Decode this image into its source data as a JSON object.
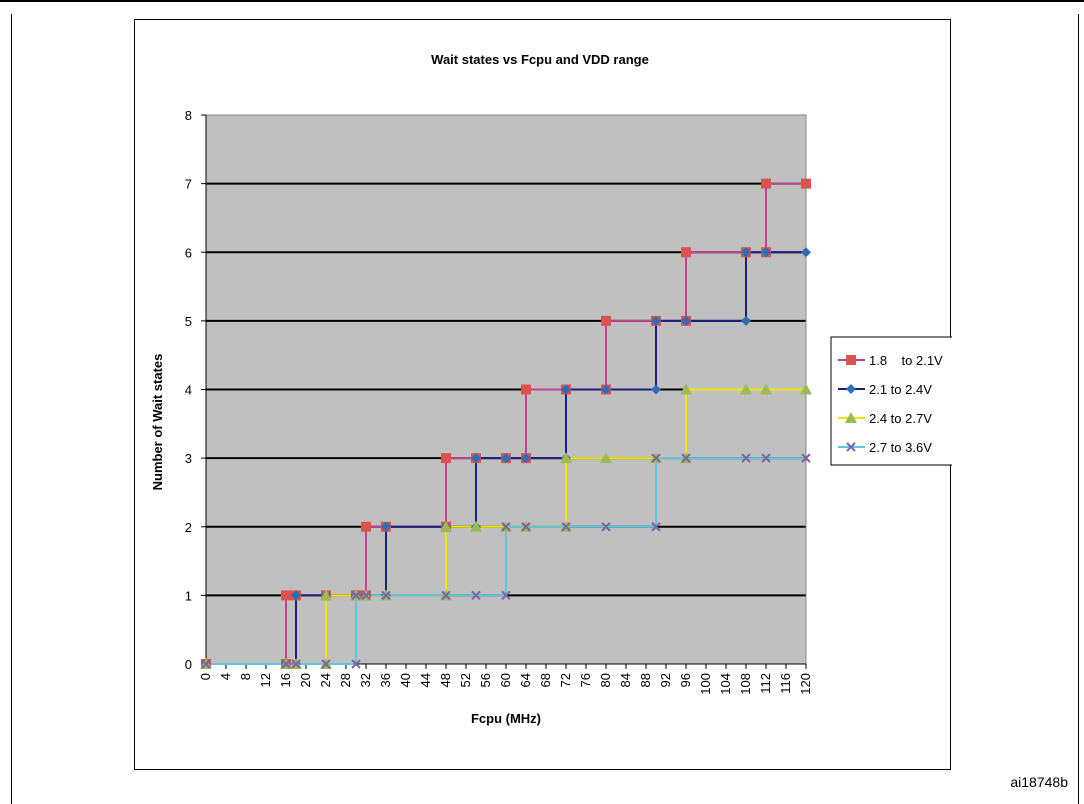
{
  "figure_id": "ai18748b",
  "chart_data": {
    "type": "line",
    "title": "Wait states vs Fcpu and VDD range",
    "xlabel": "Fcpu (MHz)",
    "ylabel": "Number of Wait states",
    "xlim": [
      0,
      120
    ],
    "ylim": [
      0,
      8
    ],
    "x_ticks": [
      0,
      4,
      8,
      12,
      16,
      20,
      24,
      28,
      32,
      36,
      40,
      44,
      48,
      52,
      56,
      60,
      64,
      68,
      72,
      76,
      80,
      84,
      88,
      92,
      96,
      100,
      104,
      108,
      112,
      116,
      120
    ],
    "y_ticks": [
      0,
      1,
      2,
      3,
      4,
      5,
      6,
      7,
      8
    ],
    "grid": "horizontal",
    "plot_background": "#C0C0C0",
    "legend_position": "right",
    "step_style": "vertical transitions",
    "series": [
      {
        "name": "1.8    to 2.1V",
        "color": "#C0448F",
        "marker_color": "#D9544F",
        "marker": "square",
        "points": [
          [
            0,
            0
          ],
          [
            16,
            0
          ],
          [
            16,
            1
          ],
          [
            18,
            1
          ],
          [
            24,
            1
          ],
          [
            30,
            1
          ],
          [
            32,
            1
          ],
          [
            32,
            2
          ],
          [
            36,
            2
          ],
          [
            48,
            2
          ],
          [
            48,
            3
          ],
          [
            54,
            3
          ],
          [
            60,
            3
          ],
          [
            64,
            3
          ],
          [
            64,
            4
          ],
          [
            72,
            4
          ],
          [
            80,
            4
          ],
          [
            80,
            5
          ],
          [
            90,
            5
          ],
          [
            96,
            5
          ],
          [
            96,
            6
          ],
          [
            108,
            6
          ],
          [
            112,
            6
          ],
          [
            112,
            7
          ],
          [
            120,
            7
          ]
        ]
      },
      {
        "name": "2.1 to 2.4V",
        "color": "#1F1F7A",
        "marker_color": "#2E6DB4",
        "marker": "diamond",
        "points": [
          [
            0,
            0
          ],
          [
            16,
            0
          ],
          [
            18,
            0
          ],
          [
            18,
            1
          ],
          [
            24,
            1
          ],
          [
            30,
            1
          ],
          [
            32,
            1
          ],
          [
            36,
            1
          ],
          [
            36,
            2
          ],
          [
            48,
            2
          ],
          [
            54,
            2
          ],
          [
            54,
            3
          ],
          [
            60,
            3
          ],
          [
            64,
            3
          ],
          [
            72,
            3
          ],
          [
            72,
            4
          ],
          [
            80,
            4
          ],
          [
            90,
            4
          ],
          [
            90,
            5
          ],
          [
            96,
            5
          ],
          [
            108,
            5
          ],
          [
            108,
            6
          ],
          [
            112,
            6
          ],
          [
            120,
            6
          ]
        ]
      },
      {
        "name": "2.4 to 2.7V",
        "color": "#F2E600",
        "marker_color": "#9BBB59",
        "marker": "triangle",
        "points": [
          [
            0,
            0
          ],
          [
            16,
            0
          ],
          [
            18,
            0
          ],
          [
            24,
            0
          ],
          [
            24,
            1
          ],
          [
            30,
            1
          ],
          [
            32,
            1
          ],
          [
            36,
            1
          ],
          [
            48,
            1
          ],
          [
            48,
            2
          ],
          [
            54,
            2
          ],
          [
            60,
            2
          ],
          [
            64,
            2
          ],
          [
            72,
            2
          ],
          [
            72,
            3
          ],
          [
            80,
            3
          ],
          [
            90,
            3
          ],
          [
            96,
            3
          ],
          [
            96,
            4
          ],
          [
            108,
            4
          ],
          [
            112,
            4
          ],
          [
            120,
            4
          ]
        ]
      },
      {
        "name": "2.7 to 3.6V",
        "color": "#5BC8E0",
        "marker_color": "#8064A2",
        "marker": "x",
        "points": [
          [
            0,
            0
          ],
          [
            16,
            0
          ],
          [
            18,
            0
          ],
          [
            24,
            0
          ],
          [
            30,
            0
          ],
          [
            30,
            1
          ],
          [
            32,
            1
          ],
          [
            36,
            1
          ],
          [
            48,
            1
          ],
          [
            54,
            1
          ],
          [
            60,
            1
          ],
          [
            60,
            2
          ],
          [
            64,
            2
          ],
          [
            72,
            2
          ],
          [
            80,
            2
          ],
          [
            90,
            2
          ],
          [
            90,
            3
          ],
          [
            96,
            3
          ],
          [
            108,
            3
          ],
          [
            112,
            3
          ],
          [
            120,
            3
          ]
        ]
      }
    ]
  }
}
